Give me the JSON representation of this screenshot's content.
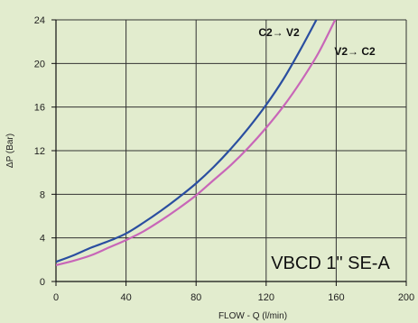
{
  "chart_data": {
    "type": "line",
    "title": "VBCD 1\" SE-A",
    "xlabel": "FLOW - Q (l/min)",
    "ylabel": "ΔP (Bar)",
    "xlim": [
      0,
      200
    ],
    "ylim": [
      0,
      24
    ],
    "x_ticks": [
      "0",
      "40",
      "80",
      "120",
      "160",
      "200"
    ],
    "y_ticks": [
      "0",
      "4",
      "8",
      "12",
      "16",
      "20",
      "24"
    ],
    "grid": true,
    "background_color": "#e2ecce",
    "series": [
      {
        "name": "C2→ V2",
        "color": "#2a4ea0",
        "x": [
          0,
          10,
          20,
          30,
          40,
          50,
          60,
          70,
          80,
          90,
          100,
          110,
          120,
          130,
          140,
          150
        ],
        "y": [
          1.8,
          2.4,
          3.1,
          3.7,
          4.4,
          5.4,
          6.5,
          7.7,
          9.0,
          10.5,
          12.2,
          14.1,
          16.2,
          18.6,
          21.4,
          24.4
        ]
      },
      {
        "name": "V2→ C2",
        "color": "#c866b8",
        "x": [
          0,
          10,
          20,
          30,
          40,
          50,
          60,
          70,
          80,
          90,
          100,
          110,
          120,
          130,
          140,
          150,
          160
        ],
        "y": [
          1.5,
          1.9,
          2.4,
          3.1,
          3.8,
          4.6,
          5.6,
          6.7,
          7.9,
          9.3,
          10.7,
          12.3,
          14.1,
          16.1,
          18.4,
          21.0,
          24.2
        ]
      }
    ]
  }
}
